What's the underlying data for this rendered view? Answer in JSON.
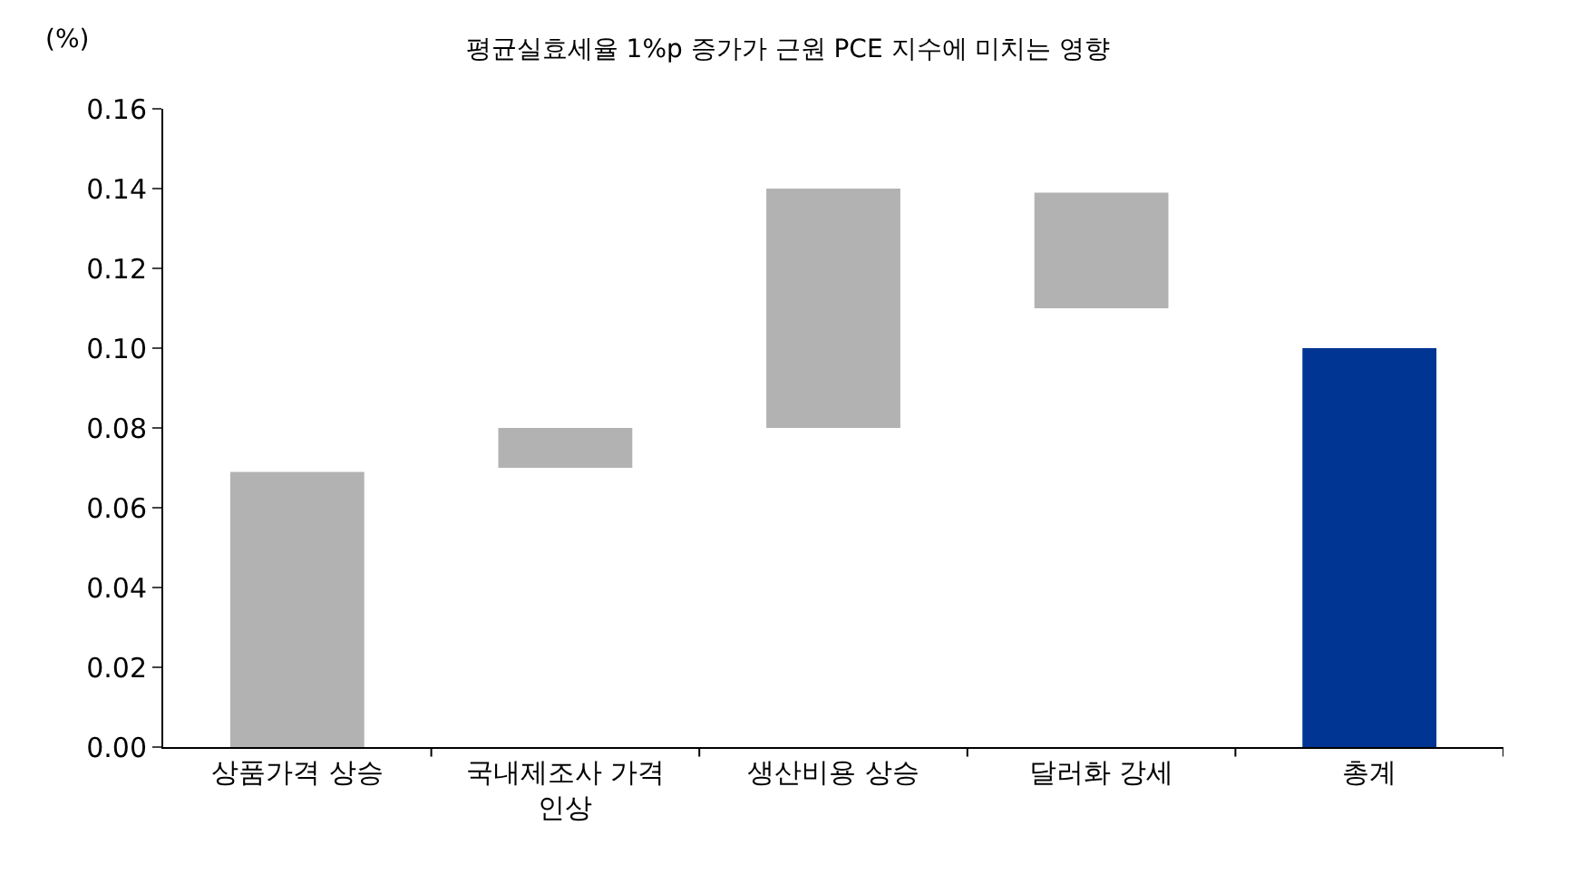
{
  "chart_data": {
    "type": "bar",
    "title": "평균실효세율 1%p 증가가 근원 PCE 지수에 미치는 영향",
    "ylabel": "(%)",
    "categories": [
      "상품가격 상승",
      "국내제조사 가격 인상",
      "생산비용 상승",
      "달러화 강세",
      "총계"
    ],
    "base": [
      0,
      0.07,
      0.08,
      0.11,
      0
    ],
    "values": [
      0.069,
      0.01,
      0.06,
      0.029,
      0.1
    ],
    "colors": [
      "#b2b2b2",
      "#b2b2b2",
      "#b2b2b2",
      "#b2b2b2",
      "#003594"
    ],
    "ylim": [
      0,
      0.16
    ],
    "yticks": [
      {
        "value": 0,
        "label": "0.00"
      },
      {
        "value": 0.02,
        "label": "0.02"
      },
      {
        "value": 0.04,
        "label": "0.04"
      },
      {
        "value": 0.06,
        "label": "0.06"
      },
      {
        "value": 0.08,
        "label": "0.08"
      },
      {
        "value": 0.1,
        "label": "0.10"
      },
      {
        "value": 0.12,
        "label": "0.12"
      },
      {
        "value": 0.14,
        "label": "0.14"
      },
      {
        "value": 0.16,
        "label": "0.16"
      }
    ],
    "legend": false
  }
}
